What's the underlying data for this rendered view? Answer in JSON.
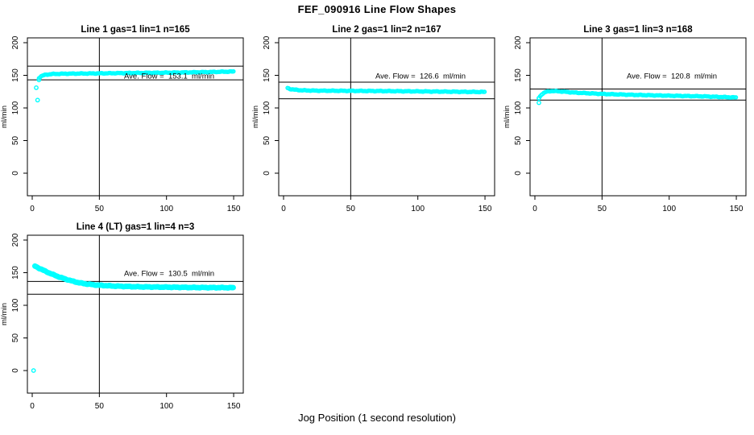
{
  "page": {
    "title": "FEF_090916  Line Flow Shapes",
    "xlabel": "Jog Position (1 second resolution)"
  },
  "colors": {
    "series": "#00FFFF",
    "axis": "#000000",
    "background": "#FFFFFF"
  },
  "chart_data": [
    {
      "type": "scatter",
      "title": "Line 1 gas=1 lin=1 n=165",
      "annotation": "Ave. Flow =  153.1  ml/min",
      "ave_flow": 153.1,
      "n": 165,
      "ylabel": "ml/min",
      "y_ticks": [
        0,
        50,
        100,
        150,
        200
      ],
      "x_ticks": [
        0,
        50,
        100,
        150
      ],
      "xlim": [
        0,
        150
      ],
      "ref_vline_x": 50,
      "ref_hlines": [
        164,
        143
      ],
      "leading_points": [
        [
          4,
          112
        ],
        [
          3,
          131
        ],
        [
          5,
          143
        ]
      ],
      "curve_keypoints": [
        [
          5,
          146
        ],
        [
          7,
          149
        ],
        [
          10,
          151
        ],
        [
          15,
          152
        ],
        [
          25,
          152.5
        ],
        [
          50,
          153
        ],
        [
          80,
          153.7
        ],
        [
          110,
          154.3
        ],
        [
          130,
          155
        ],
        [
          150,
          155.8
        ]
      ],
      "marker_radius": 2,
      "x_step": 0.9
    },
    {
      "type": "scatter",
      "title": "Line 2 gas=1 lin=2 n=167",
      "annotation": "Ave. Flow =  126.6  ml/min",
      "ave_flow": 126.6,
      "n": 167,
      "ylabel": "ml/min",
      "y_ticks": [
        0,
        50,
        100,
        150,
        200
      ],
      "x_ticks": [
        0,
        50,
        100,
        150
      ],
      "xlim": [
        0,
        150
      ],
      "ref_vline_x": 50,
      "ref_hlines": [
        139.5,
        114
      ],
      "leading_points": [],
      "curve_keypoints": [
        [
          3,
          130.5
        ],
        [
          5,
          129
        ],
        [
          8,
          128
        ],
        [
          14,
          127
        ],
        [
          25,
          126.5
        ],
        [
          50,
          126.2
        ],
        [
          80,
          125.8
        ],
        [
          110,
          125.2
        ],
        [
          135,
          124.7
        ],
        [
          150,
          124.5
        ]
      ],
      "marker_radius": 2,
      "x_step": 0.9
    },
    {
      "type": "scatter",
      "title": "Line 3 gas=1 lin=3 n=168",
      "annotation": "Ave. Flow =  120.8  ml/min",
      "ave_flow": 120.8,
      "n": 168,
      "ylabel": "ml/min",
      "y_ticks": [
        0,
        50,
        100,
        150,
        200
      ],
      "x_ticks": [
        0,
        50,
        100,
        150
      ],
      "xlim": [
        0,
        150
      ],
      "ref_vline_x": 50,
      "ref_hlines": [
        129,
        112
      ],
      "leading_points": [
        [
          3,
          108
        ],
        [
          3,
          115
        ]
      ],
      "curve_keypoints": [
        [
          3,
          115
        ],
        [
          5,
          121
        ],
        [
          8,
          124.5
        ],
        [
          12,
          126
        ],
        [
          18,
          125.5
        ],
        [
          30,
          123.5
        ],
        [
          50,
          121.5
        ],
        [
          75,
          120
        ],
        [
          100,
          118.8
        ],
        [
          125,
          117.8
        ],
        [
          150,
          116
        ]
      ],
      "marker_radius": 2,
      "x_step": 0.9
    },
    {
      "type": "scatter",
      "title": "Line 4 (LT) gas=1 lin=4 n=3",
      "annotation": "Ave. Flow =  130.5  ml/min",
      "ave_flow": 130.5,
      "n": 3,
      "ylabel": "ml/min",
      "y_ticks": [
        0,
        50,
        100,
        150,
        200
      ],
      "x_ticks": [
        0,
        50,
        100,
        150
      ],
      "xlim": [
        0,
        150
      ],
      "ref_vline_x": 50,
      "ref_hlines": [
        136.5,
        117
      ],
      "leading_points": [
        [
          1,
          0
        ]
      ],
      "curve_keypoints": [
        [
          2,
          160
        ],
        [
          6,
          156
        ],
        [
          10,
          152
        ],
        [
          15,
          147.5
        ],
        [
          20,
          143.5
        ],
        [
          25,
          140
        ],
        [
          30,
          137
        ],
        [
          35,
          134.5
        ],
        [
          40,
          132.8
        ],
        [
          48,
          131
        ],
        [
          60,
          129.5
        ],
        [
          80,
          128.3
        ],
        [
          100,
          127.8
        ],
        [
          120,
          127.3
        ],
        [
          150,
          127
        ]
      ],
      "marker_radius": 2.7,
      "x_step": 0.7
    }
  ]
}
